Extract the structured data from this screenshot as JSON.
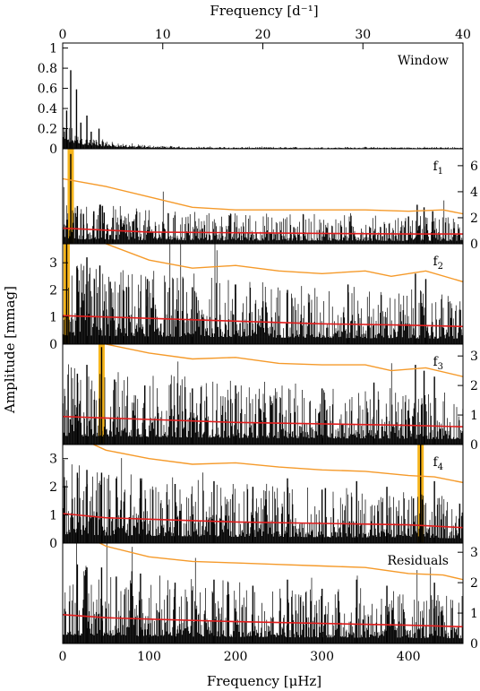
{
  "chart_data": {
    "type": "line",
    "top_axis": {
      "label": "Frequency [d⁻¹]",
      "range": [
        0,
        40
      ],
      "ticks": [
        "0",
        "10",
        "20",
        "30",
        "40"
      ]
    },
    "bottom_axis": {
      "label": "Frequency [μHz]",
      "range": [
        0,
        463
      ],
      "ticks": [
        "0",
        "100",
        "200",
        "300",
        "400"
      ]
    },
    "ylabel": "Amplitude [mmag]",
    "panels": [
      {
        "label": "Window",
        "sub": "",
        "ylim": [
          0,
          1.05
        ],
        "y_axis_side": "left",
        "ticks": [
          "0",
          "0.2",
          "0.4",
          "0.6",
          "0.8",
          "1"
        ],
        "peaks": [
          [
            9.3,
            0.78
          ],
          [
            16,
            0.59
          ],
          [
            28,
            0.33
          ],
          [
            42,
            0.2
          ],
          [
            4.6,
            0.38
          ],
          [
            21,
            0.26
          ],
          [
            33,
            0.17
          ]
        ],
        "highlight": null
      },
      {
        "label": "f",
        "sub": "1",
        "ylim": [
          0,
          7.3
        ],
        "y_axis_side": "right",
        "ticks": [
          "0",
          "2",
          "4",
          "6"
        ],
        "peaks": [
          [
            9.3,
            6.9
          ],
          [
            17,
            2.9
          ],
          [
            24,
            2.3
          ],
          [
            36,
            2.5
          ],
          [
            43,
            3.0
          ],
          [
            48,
            2.4
          ],
          [
            58,
            2.0
          ],
          [
            410,
            3.0
          ],
          [
            418,
            2.8
          ],
          [
            428,
            2.5
          ],
          [
            400,
            2.1
          ]
        ],
        "highlight": {
          "x": 9.3,
          "color": "#f6b51c"
        }
      },
      {
        "label": "f",
        "sub": "2",
        "ylim": [
          0,
          3.7
        ],
        "y_axis_side": "left",
        "ticks": [
          "0",
          "1",
          "2",
          "3"
        ],
        "peaks": [
          [
            4.6,
            3.8
          ],
          [
            17,
            2.8
          ],
          [
            28,
            3.2
          ],
          [
            43,
            2.9
          ],
          [
            55,
            2.3
          ],
          [
            70,
            2.0
          ],
          [
            98,
            2.4
          ],
          [
            150,
            2.1
          ],
          [
            200,
            2.2
          ],
          [
            260,
            2.0
          ],
          [
            330,
            2.2
          ],
          [
            408,
            2.6
          ],
          [
            420,
            2.4
          ]
        ],
        "highlight": {
          "x": 4.6,
          "color": "#f6b51c"
        }
      },
      {
        "label": "f",
        "sub": "3",
        "ylim": [
          0,
          3.4
        ],
        "y_axis_side": "right",
        "ticks": [
          "0",
          "1",
          "2",
          "3"
        ],
        "peaks": [
          [
            45,
            3.3
          ],
          [
            17,
            2.4
          ],
          [
            28,
            2.7
          ],
          [
            60,
            2.2
          ],
          [
            95,
            2.0
          ],
          [
            150,
            1.9
          ],
          [
            200,
            2.0
          ],
          [
            300,
            1.9
          ],
          [
            360,
            2.1
          ],
          [
            408,
            2.7
          ],
          [
            418,
            2.5
          ],
          [
            430,
            2.3
          ]
        ],
        "highlight": {
          "x": 45,
          "color": "#f6b51c"
        }
      },
      {
        "label": "f",
        "sub": "4",
        "ylim": [
          0,
          3.5
        ],
        "y_axis_side": "left",
        "ticks": [
          "0",
          "1",
          "2",
          "3"
        ],
        "peaks": [
          [
            414,
            3.5
          ],
          [
            17,
            2.5
          ],
          [
            28,
            2.6
          ],
          [
            45,
            2.5
          ],
          [
            62,
            2.3
          ],
          [
            90,
            2.3
          ],
          [
            130,
            2.1
          ],
          [
            175,
            2.2
          ],
          [
            220,
            2.0
          ],
          [
            260,
            2.3
          ],
          [
            300,
            1.9
          ],
          [
            340,
            2.2
          ],
          [
            375,
            2.0
          ],
          [
            430,
            2.2
          ]
        ],
        "highlight": {
          "x": 414,
          "color": "#f6b51c"
        }
      },
      {
        "label": "Residuals",
        "sub": "",
        "ylim": [
          0,
          3.3
        ],
        "y_axis_side": "right",
        "ticks": [
          "0",
          "1",
          "2",
          "3"
        ],
        "peaks": [
          [
            17,
            2.6
          ],
          [
            28,
            2.5
          ],
          [
            45,
            2.5
          ],
          [
            62,
            2.2
          ],
          [
            90,
            2.3
          ],
          [
            130,
            2.0
          ],
          [
            175,
            2.1
          ],
          [
            220,
            1.9
          ],
          [
            260,
            2.1
          ],
          [
            300,
            1.8
          ],
          [
            340,
            2.1
          ],
          [
            375,
            1.9
          ],
          [
            430,
            2.0
          ]
        ],
        "highlight": null
      }
    ],
    "significance_curves": {
      "f1": {
        "orange": [
          [
            0,
            5.0
          ],
          [
            50,
            4.4
          ],
          [
            100,
            3.6
          ],
          [
            150,
            2.8
          ],
          [
            200,
            2.6
          ],
          [
            250,
            2.6
          ],
          [
            300,
            2.6
          ],
          [
            350,
            2.6
          ],
          [
            400,
            2.5
          ],
          [
            440,
            2.6
          ],
          [
            463,
            2.3
          ]
        ],
        "red": [
          [
            0,
            1.2
          ],
          [
            50,
            1.05
          ],
          [
            100,
            0.9
          ],
          [
            200,
            0.85
          ],
          [
            300,
            0.8
          ],
          [
            400,
            0.75
          ],
          [
            463,
            0.75
          ]
        ]
      },
      "f2": {
        "orange": [
          [
            0,
            4.5
          ],
          [
            50,
            3.7
          ],
          [
            100,
            3.1
          ],
          [
            150,
            2.8
          ],
          [
            200,
            2.9
          ],
          [
            250,
            2.7
          ],
          [
            300,
            2.6
          ],
          [
            350,
            2.7
          ],
          [
            380,
            2.5
          ],
          [
            420,
            2.7
          ],
          [
            463,
            2.3
          ]
        ],
        "red": [
          [
            0,
            1.05
          ],
          [
            50,
            1.0
          ],
          [
            100,
            0.95
          ],
          [
            200,
            0.85
          ],
          [
            300,
            0.75
          ],
          [
            400,
            0.7
          ],
          [
            463,
            0.65
          ]
        ]
      },
      "f3": {
        "orange": [
          [
            0,
            4.2
          ],
          [
            50,
            3.4
          ],
          [
            100,
            3.1
          ],
          [
            150,
            2.9
          ],
          [
            200,
            2.95
          ],
          [
            250,
            2.75
          ],
          [
            300,
            2.7
          ],
          [
            350,
            2.7
          ],
          [
            380,
            2.5
          ],
          [
            420,
            2.6
          ],
          [
            463,
            2.3
          ]
        ],
        "red": [
          [
            0,
            0.95
          ],
          [
            50,
            0.9
          ],
          [
            100,
            0.85
          ],
          [
            200,
            0.75
          ],
          [
            300,
            0.7
          ],
          [
            400,
            0.65
          ],
          [
            463,
            0.6
          ]
        ]
      },
      "f4": {
        "orange": [
          [
            0,
            4.0
          ],
          [
            50,
            3.3
          ],
          [
            100,
            3.0
          ],
          [
            150,
            2.8
          ],
          [
            200,
            2.85
          ],
          [
            250,
            2.7
          ],
          [
            300,
            2.6
          ],
          [
            350,
            2.55
          ],
          [
            400,
            2.4
          ],
          [
            430,
            2.35
          ],
          [
            463,
            2.15
          ]
        ],
        "red": [
          [
            0,
            1.05
          ],
          [
            50,
            0.9
          ],
          [
            100,
            0.85
          ],
          [
            200,
            0.75
          ],
          [
            300,
            0.7
          ],
          [
            400,
            0.65
          ],
          [
            463,
            0.55
          ]
        ]
      },
      "Residuals": {
        "orange": [
          [
            0,
            3.9
          ],
          [
            50,
            3.2
          ],
          [
            100,
            2.85
          ],
          [
            150,
            2.7
          ],
          [
            200,
            2.65
          ],
          [
            250,
            2.6
          ],
          [
            300,
            2.55
          ],
          [
            350,
            2.5
          ],
          [
            400,
            2.3
          ],
          [
            440,
            2.25
          ],
          [
            463,
            2.1
          ]
        ],
        "red": [
          [
            0,
            0.95
          ],
          [
            50,
            0.85
          ],
          [
            100,
            0.8
          ],
          [
            200,
            0.72
          ],
          [
            300,
            0.66
          ],
          [
            400,
            0.6
          ],
          [
            463,
            0.55
          ]
        ]
      }
    }
  }
}
